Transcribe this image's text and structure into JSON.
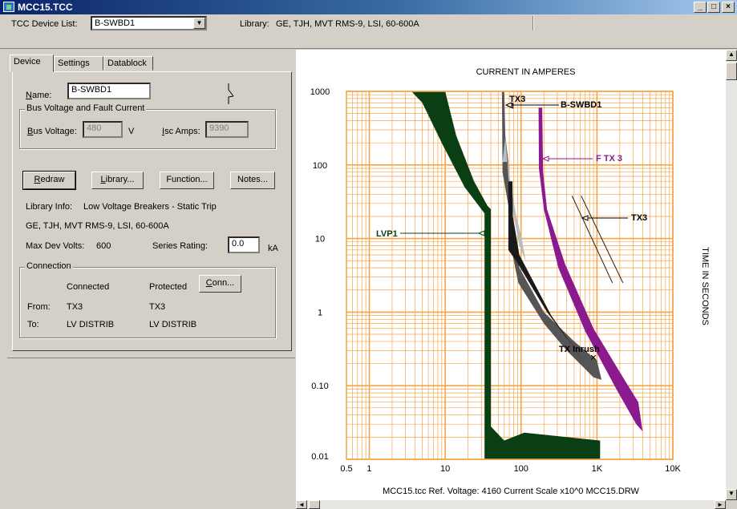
{
  "window": {
    "title": "MCC15.TCC",
    "min_label": "_",
    "max_label": "□",
    "close_label": "×"
  },
  "toolbar": {
    "device_list_label": "TCC Device List:",
    "device_value": "B-SWBD1",
    "library_label": "Library:",
    "library_value": "GE, TJH, MVT RMS-9, LSI, 60-600A"
  },
  "tabs": [
    "Device",
    "Settings",
    "Datablock"
  ],
  "device": {
    "name_label": "Name:",
    "name_value": "B-SWBD1",
    "bus_group_label": "Bus Voltage and Fault Current",
    "bus_voltage_label": "Bus Voltage:",
    "bus_voltage_value": "480",
    "volt_unit": "V",
    "isc_label": "Isc Amps:",
    "isc_value": "9390"
  },
  "buttons": {
    "redraw": "Redraw",
    "library": "Library...",
    "function": "Function...",
    "notes": "Notes...",
    "conn": "Conn..."
  },
  "info": {
    "library_info_label": "Library Info:",
    "library_info_value": "Low Voltage Breakers - Static Trip",
    "library_desc": "GE, TJH, MVT RMS-9, LSI, 60-600A",
    "max_dev_volts_label": "Max Dev Volts:",
    "max_dev_volts_value": "600",
    "series_rating_label": "Series Rating:",
    "series_rating_value": "0.0",
    "series_rating_unit": "kA"
  },
  "connection": {
    "group_label": "Connection",
    "connected_header": "Connected",
    "protected_header": "Protected",
    "from_label": "From:",
    "from_connected": "TX3",
    "from_protected": "TX3",
    "to_label": "To:",
    "to_connected": "LV DISTRIB",
    "to_protected": "LV DISTRIB"
  },
  "colors": {
    "grid": "#f5a54a",
    "lvp1": "#0a3f14",
    "ftx3": "#8a1a8e",
    "title_gradient_start": "#0a246a"
  },
  "chart_data": {
    "type": "line",
    "title": "",
    "xlabel": "CURRENT IN AMPERES",
    "ylabel": "TIME IN SECONDS",
    "xscale": "log",
    "yscale": "log",
    "xlim": [
      0.5,
      10000
    ],
    "ylim": [
      0.01,
      1000
    ],
    "x_ticks": [
      "0.5",
      "1",
      "10",
      "100",
      "1K",
      "10K"
    ],
    "y_ticks": [
      "1000",
      "100",
      "10",
      "1",
      "0.10",
      "0.01"
    ],
    "footer": "MCC15.tcc  Ref. Voltage: 4160  Current Scale x10^0  MCC15.DRW",
    "series": [
      {
        "name": "LVP1",
        "upper": [
          [
            3,
            1000
          ],
          [
            10,
            800
          ],
          [
            35,
            20
          ],
          [
            35,
            0.01
          ],
          [
            120,
            0.02
          ],
          [
            1100,
            0.018
          ]
        ]
      },
      {
        "name": "B-SWBD1",
        "upper": [
          [
            58,
            1000
          ],
          [
            60,
            300
          ],
          [
            90,
            60
          ],
          [
            100,
            3
          ],
          [
            300,
            0.6
          ],
          [
            1000,
            0.1
          ]
        ]
      },
      {
        "name": "F TX 3",
        "upper": [
          [
            180,
            600
          ],
          [
            200,
            60
          ],
          [
            400,
            5
          ],
          [
            1000,
            0.5
          ],
          [
            2500,
            0.08
          ],
          [
            3800,
            0.03
          ]
        ]
      },
      {
        "name": "TX3",
        "upper": [
          [
            500,
            40
          ],
          [
            1700,
            3
          ]
        ]
      }
    ],
    "annotations": [
      "TX3",
      "B-SWBD1",
      "F TX 3",
      "TX3",
      "LVP1",
      "TX Inrush"
    ]
  }
}
